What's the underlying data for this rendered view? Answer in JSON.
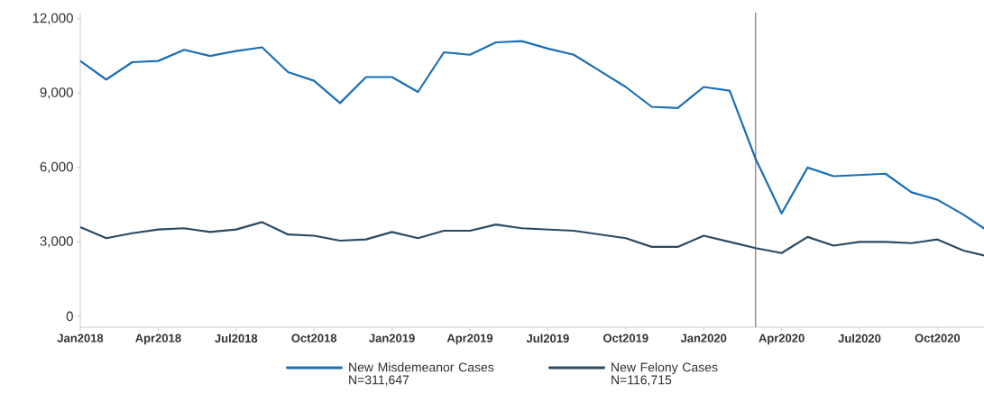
{
  "chart_data": {
    "type": "line",
    "x": [
      "2018-01",
      "2018-02",
      "2018-03",
      "2018-04",
      "2018-05",
      "2018-06",
      "2018-07",
      "2018-08",
      "2018-09",
      "2018-10",
      "2018-11",
      "2018-12",
      "2019-01",
      "2019-02",
      "2019-03",
      "2019-04",
      "2019-05",
      "2019-06",
      "2019-07",
      "2019-08",
      "2019-09",
      "2019-10",
      "2019-11",
      "2019-12",
      "2020-01",
      "2020-02",
      "2020-03",
      "2020-04",
      "2020-05",
      "2020-06",
      "2020-07",
      "2020-08",
      "2020-09",
      "2020-10",
      "2020-11",
      "2020-12"
    ],
    "series": [
      {
        "name": "New Misdemeanor Cases N=311,647",
        "color": "#1a6fb5",
        "values": [
          10300,
          9550,
          10250,
          10300,
          10750,
          10500,
          10700,
          10850,
          9850,
          9500,
          8600,
          9650,
          9650,
          9050,
          10650,
          10550,
          11050,
          11100,
          10800,
          10550,
          9900,
          9250,
          8450,
          8400,
          9250,
          9100,
          6350,
          4150,
          6000,
          5650,
          5700,
          5750,
          5000,
          4700,
          4100,
          3400
        ]
      },
      {
        "name": "New Felony Cases N=116,715",
        "color": "#2a4a63",
        "values": [
          3600,
          3150,
          3350,
          3500,
          3550,
          3400,
          3500,
          3800,
          3300,
          3250,
          3050,
          3100,
          3400,
          3150,
          3450,
          3450,
          3700,
          3550,
          3500,
          3450,
          3300,
          3150,
          2800,
          2800,
          3250,
          3000,
          2750,
          2550,
          3200,
          2850,
          3000,
          3000,
          2950,
          3100,
          2650,
          2400
        ]
      }
    ],
    "xlim": [
      "2018-01",
      "2020-12"
    ],
    "xticks": [
      {
        "value": "2018-01",
        "label": "Jan2018"
      },
      {
        "value": "2018-04",
        "label": "Apr2018"
      },
      {
        "value": "2018-07",
        "label": "Jul2018"
      },
      {
        "value": "2018-10",
        "label": "Oct2018"
      },
      {
        "value": "2019-01",
        "label": "Jan2019"
      },
      {
        "value": "2019-04",
        "label": "Apr2019"
      },
      {
        "value": "2019-07",
        "label": "Jul2019"
      },
      {
        "value": "2019-10",
        "label": "Oct2019"
      },
      {
        "value": "2020-01",
        "label": "Jan2020"
      },
      {
        "value": "2020-04",
        "label": "Apr2020"
      },
      {
        "value": "2020-07",
        "label": "Jul2020"
      },
      {
        "value": "2020-10",
        "label": "Oct2020"
      }
    ],
    "ylim": [
      -440,
      12250
    ],
    "yticks": [
      {
        "value": 0,
        "label": "0"
      },
      {
        "value": 3000,
        "label": "3,000"
      },
      {
        "value": 6000,
        "label": "6,000"
      },
      {
        "value": 9000,
        "label": "9,000"
      },
      {
        "value": 12000,
        "label": "12,000"
      }
    ],
    "ref_lines": [
      {
        "axis": "x",
        "value": "2020-03",
        "color": "#7a3b3b"
      }
    ],
    "legend": "bottom",
    "marker": "none",
    "line_style": "solid"
  }
}
